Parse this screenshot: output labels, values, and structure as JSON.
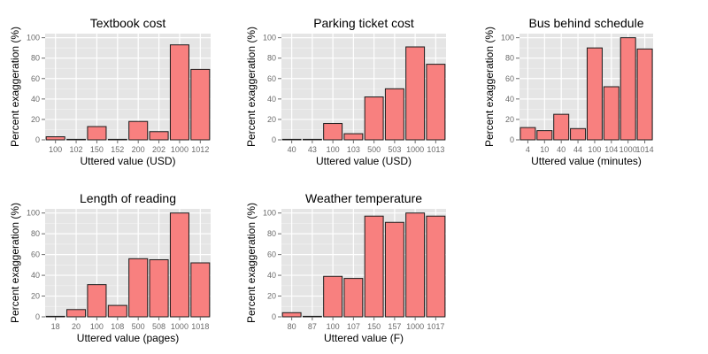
{
  "chart_data": [
    {
      "type": "bar",
      "title": "Textbook cost",
      "xlabel": "Uttered value (USD)",
      "ylabel": "Percent exaggeration (%)",
      "categories": [
        "100",
        "102",
        "150",
        "152",
        "200",
        "202",
        "1000",
        "1012"
      ],
      "values": [
        3,
        0.5,
        13,
        0.5,
        18,
        8,
        93,
        69
      ],
      "ylim": [
        0,
        104
      ],
      "yticks": [
        0,
        20,
        40,
        60,
        80,
        100
      ],
      "grid": true
    },
    {
      "type": "bar",
      "title": "Parking ticket cost",
      "xlabel": "Uttered value (USD)",
      "ylabel": "Percent exaggeration (%)",
      "categories": [
        "40",
        "43",
        "100",
        "103",
        "500",
        "503",
        "1000",
        "1013"
      ],
      "values": [
        0.5,
        0.5,
        16,
        6,
        42,
        50,
        91,
        74
      ],
      "ylim": [
        0,
        104
      ],
      "yticks": [
        0,
        20,
        40,
        60,
        80,
        100
      ],
      "grid": true
    },
    {
      "type": "bar",
      "title": "Bus behind schedule",
      "xlabel": "Uttered value (minutes)",
      "ylabel": "Percent exaggeration (%)",
      "categories": [
        "4",
        "10",
        "40",
        "44",
        "100",
        "104",
        "1000",
        "1014"
      ],
      "values": [
        12,
        9,
        25,
        11,
        90,
        52,
        100,
        89
      ],
      "ylim": [
        0,
        104
      ],
      "yticks": [
        0,
        20,
        40,
        60,
        80,
        100
      ],
      "grid": true
    },
    {
      "type": "bar",
      "title": "Length of reading",
      "xlabel": "Uttered value (pages)",
      "ylabel": "Percent exaggeration (%)",
      "categories": [
        "18",
        "20",
        "100",
        "108",
        "500",
        "508",
        "1000",
        "1018"
      ],
      "values": [
        0.5,
        7,
        31,
        11,
        56,
        55,
        100,
        52
      ],
      "ylim": [
        0,
        104
      ],
      "yticks": [
        0,
        20,
        40,
        60,
        80,
        100
      ],
      "grid": true
    },
    {
      "type": "bar",
      "title": "Weather temperature",
      "xlabel": "Uttered value (F)",
      "ylabel": "Percent exaggeration (%)",
      "categories": [
        "80",
        "87",
        "100",
        "107",
        "150",
        "157",
        "1000",
        "1017"
      ],
      "values": [
        4,
        0.5,
        39,
        37,
        97,
        91,
        100,
        97
      ],
      "ylim": [
        0,
        104
      ],
      "yticks": [
        0,
        20,
        40,
        60,
        80,
        100
      ],
      "grid": true
    }
  ],
  "colors": {
    "bar_fill": "#f8807f",
    "bar_stroke": "#1a1a1a",
    "panel_background": "#e5e5e5",
    "grid": "#ffffff"
  }
}
